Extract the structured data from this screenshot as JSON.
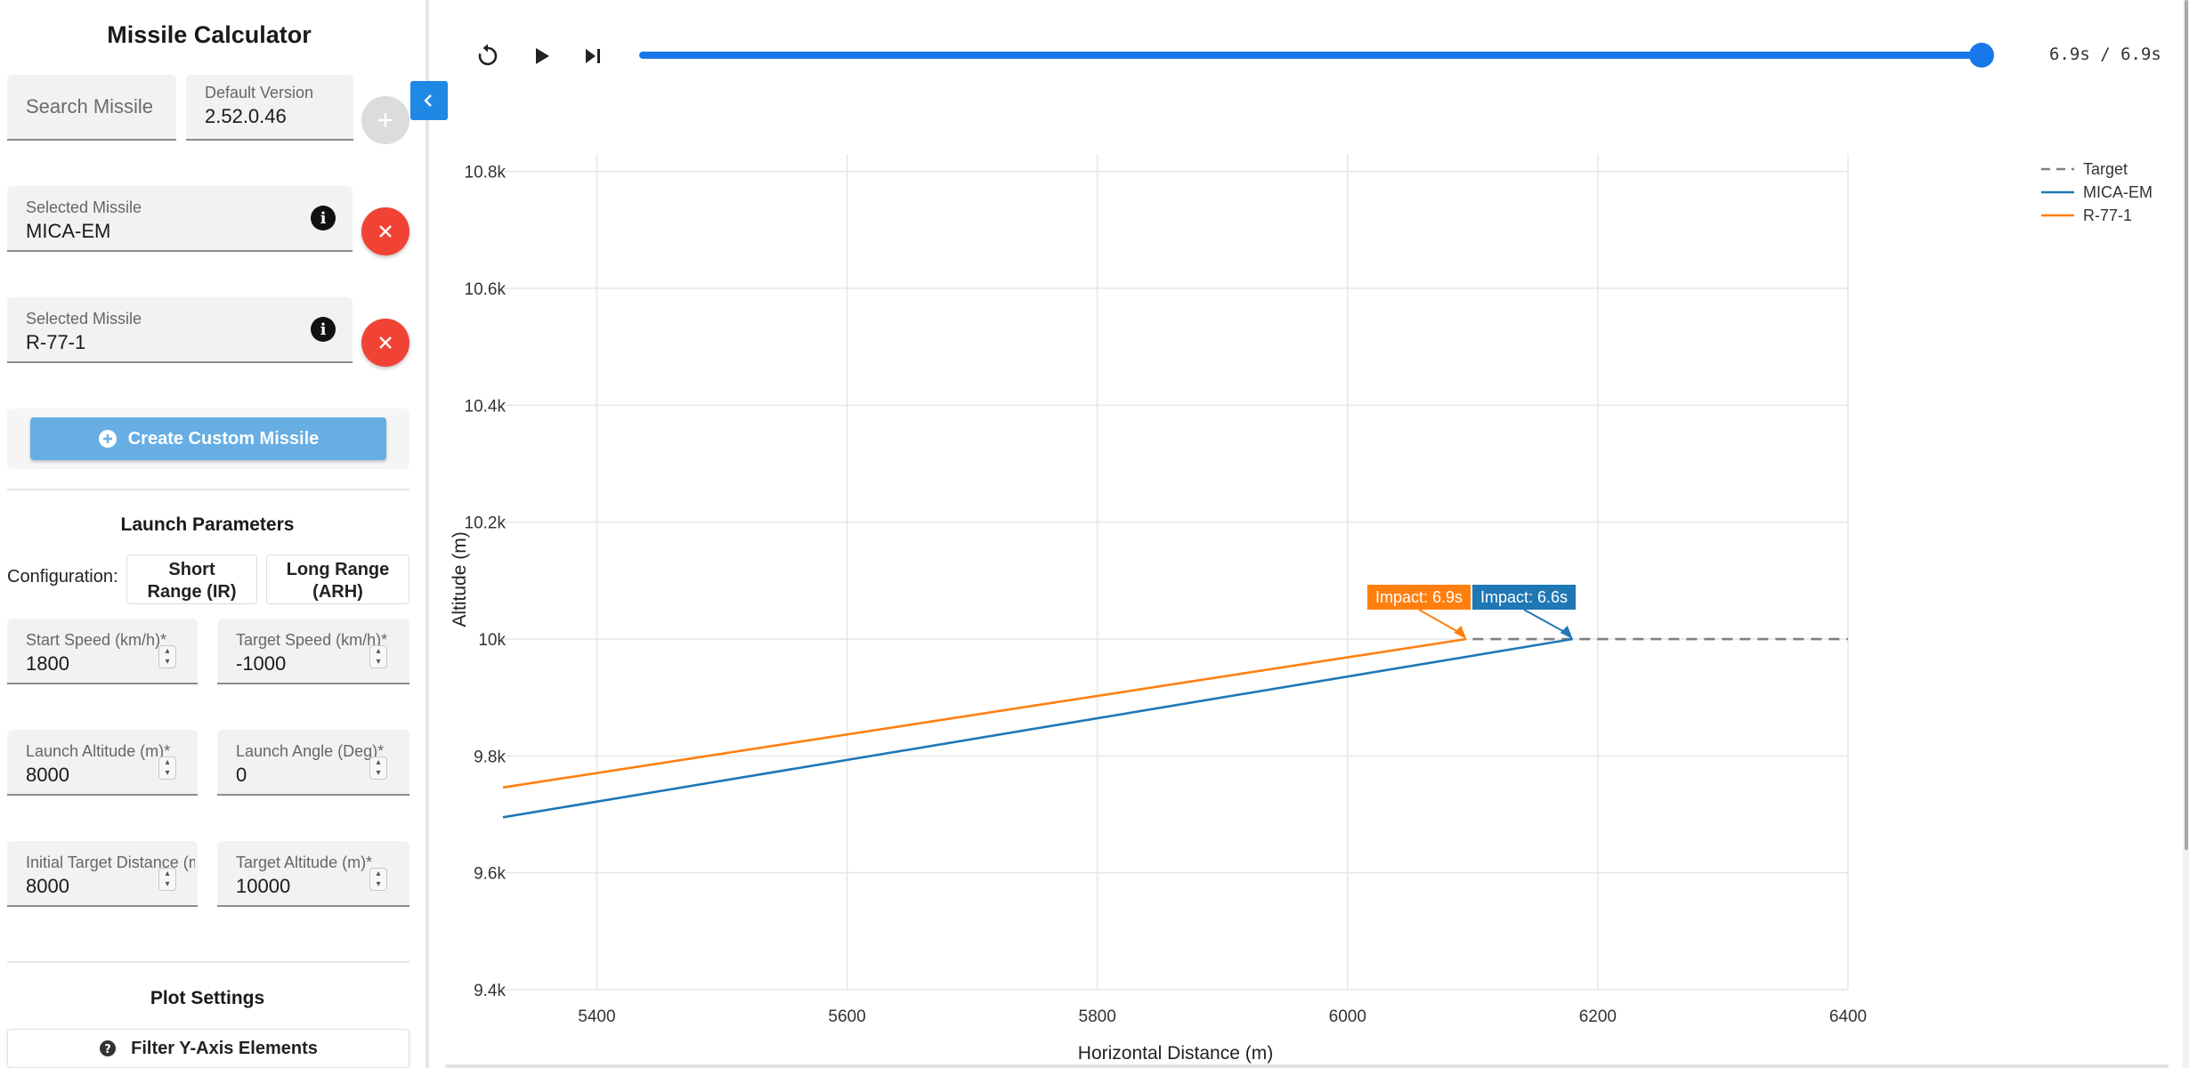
{
  "sidebar": {
    "title": "Missile Calculator",
    "search": {
      "placeholder": "Search Missile"
    },
    "version": {
      "label": "Default Version",
      "value": "2.52.0.46"
    },
    "selected": [
      {
        "label": "Selected Missile",
        "value": "MICA-EM"
      },
      {
        "label": "Selected Missile",
        "value": "R-77-1"
      }
    ],
    "create_custom_label": "Create Custom Missile",
    "launch": {
      "title": "Launch Parameters",
      "config_label": "Configuration:",
      "config_buttons": [
        {
          "line1": "Short",
          "line2": "Range (IR)"
        },
        {
          "line1": "Long Range",
          "line2": "(ARH)"
        }
      ],
      "fields": [
        {
          "label": "Start Speed (km/h)*",
          "value": "1800"
        },
        {
          "label": "Target Speed (km/h)*",
          "value": "-1000"
        },
        {
          "label": "Launch Altitude (m)*",
          "value": "8000"
        },
        {
          "label": "Launch Angle (Deg)*",
          "value": "0"
        },
        {
          "label": "Initial Target Distance (m)*",
          "value": "8000"
        },
        {
          "label": "Target Altitude (m)*",
          "value": "10000"
        }
      ]
    },
    "plot_settings": {
      "title": "Plot Settings",
      "filter_label": "Filter Y-Axis Elements"
    }
  },
  "player": {
    "time_label": "6.9s / 6.9s",
    "progress": 1.0
  },
  "icons": {
    "replay": "replay-icon",
    "play": "play-icon",
    "skip": "skip-next-icon",
    "collapse": "chevron-left-icon",
    "add": "plus-icon",
    "remove": "close-icon",
    "info": "info-icon",
    "help": "help-icon"
  },
  "colors": {
    "mica": "#1f77b4",
    "r77": "#ff7f0e",
    "target": "#7f7f7f",
    "accent": "#1877e9",
    "remove": "#f04336"
  },
  "chart_data": {
    "type": "line",
    "xlabel": "Horizontal Distance (m)",
    "ylabel": "Altitude (m)",
    "xlim": [
      5325,
      6400
    ],
    "ylim": [
      9400,
      10830
    ],
    "x_ticks": [
      5400,
      5600,
      5800,
      6000,
      6200,
      6400
    ],
    "y_ticks": [
      9400,
      9600,
      9800,
      10000,
      10200,
      10400,
      10600,
      10800
    ],
    "y_tick_labels": [
      "9.4k",
      "9.6k",
      "9.8k",
      "10k",
      "10.2k",
      "10.4k",
      "10.6k",
      "10.8k"
    ],
    "grid": true,
    "legend_position": "top-right",
    "series": [
      {
        "name": "Target",
        "style": "dashed",
        "color": "#7f7f7f",
        "x": [
          6100,
          6400
        ],
        "y": [
          10000,
          10000
        ]
      },
      {
        "name": "MICA-EM",
        "style": "solid",
        "color": "#1f77b4",
        "x": [
          5325,
          6180
        ],
        "y": [
          9695,
          10000
        ]
      },
      {
        "name": "R-77-1",
        "style": "solid",
        "color": "#ff7f0e",
        "x": [
          5325,
          6095
        ],
        "y": [
          9746,
          10000
        ]
      }
    ],
    "annotations": [
      {
        "text": "Impact: 6.9s",
        "series": "R-77-1",
        "x": 6095,
        "y": 10000,
        "color": "#ff7f0e"
      },
      {
        "text": "Impact: 6.6s",
        "series": "MICA-EM",
        "x": 6180,
        "y": 10000,
        "color": "#1f77b4"
      }
    ]
  }
}
